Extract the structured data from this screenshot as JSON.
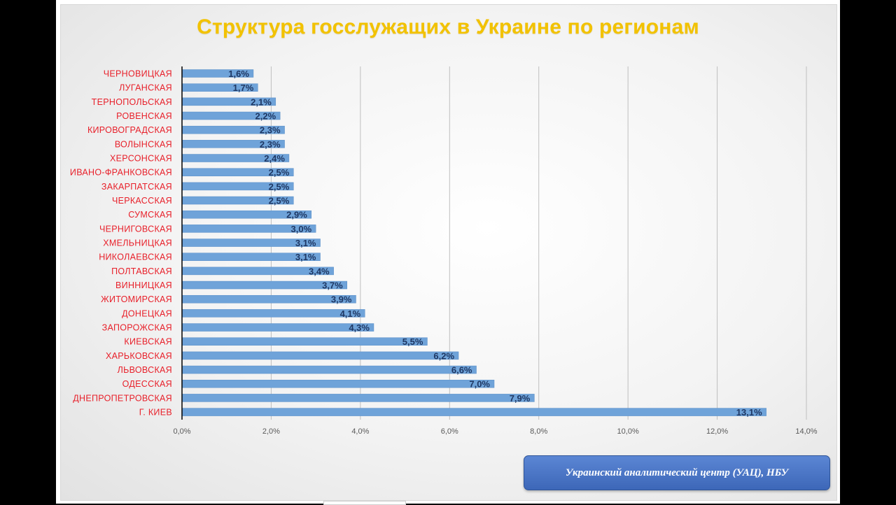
{
  "chart_data": {
    "type": "bar",
    "orientation": "horizontal",
    "title": "Структура госслужащих в Украине по регионам",
    "categories": [
      "ЧЕРНОВИЦКАЯ",
      "ЛУГАНСКАЯ",
      "ТЕРНОПОЛЬСКАЯ",
      "РОВЕНСКАЯ",
      "КИРОВОГРАДСКАЯ",
      "ВОЛЫНСКАЯ",
      "ХЕРСОНСКАЯ",
      "ИВАНО-ФРАНКОВСКАЯ",
      "ЗАКАРПАТСКАЯ",
      "ЧЕРКАССКАЯ",
      "СУМСКАЯ",
      "ЧЕРНИГОВСКАЯ",
      "ХМЕЛЬНИЦКАЯ",
      "НИКОЛАЕВСКАЯ",
      "ПОЛТАВСКАЯ",
      "ВИННИЦКАЯ",
      "ЖИТОМИРСКАЯ",
      "ДОНЕЦКАЯ",
      "ЗАПОРОЖСКАЯ",
      "КИЕВСКАЯ",
      "ХАРЬКОВСКАЯ",
      "ЛЬВОВСКАЯ",
      "ОДЕССКАЯ",
      "ДНЕПРОПЕТРОВСКАЯ",
      "Г. КИЕВ"
    ],
    "values": [
      1.6,
      1.7,
      2.1,
      2.2,
      2.3,
      2.3,
      2.4,
      2.5,
      2.5,
      2.5,
      2.9,
      3.0,
      3.1,
      3.1,
      3.4,
      3.7,
      3.9,
      4.1,
      4.3,
      5.5,
      6.2,
      6.6,
      7.0,
      7.9,
      13.1
    ],
    "data_labels": [
      "1,6%",
      "1,7%",
      "2,1%",
      "2,2%",
      "2,3%",
      "2,3%",
      "2,4%",
      "2,5%",
      "2,5%",
      "2,5%",
      "2,9%",
      "3,0%",
      "3,1%",
      "3,1%",
      "3,4%",
      "3,7%",
      "3,9%",
      "4,1%",
      "4,3%",
      "5,5%",
      "6,2%",
      "6,6%",
      "7,0%",
      "7,9%",
      "13,1%"
    ],
    "xlim": [
      0,
      14
    ],
    "xticks": [
      0,
      2,
      4,
      6,
      8,
      10,
      12,
      14
    ],
    "xtick_labels": [
      "0,0%",
      "2,0%",
      "4,0%",
      "6,0%",
      "8,0%",
      "10,0%",
      "12,0%",
      "14,0%"
    ],
    "xlabel": "",
    "ylabel": "",
    "grid": "vertical",
    "legend": "none"
  },
  "source": "Украинский аналитический центр (УАЦ), НБУ",
  "colors": {
    "bar": "#6fa3d9",
    "bar_edge": "#5a8fc8",
    "category_label": "#e8202a",
    "data_label": "#1f3864",
    "title": "#f2c200",
    "grid": "#bfbfbf",
    "axis": "#000000",
    "tick_label": "#595959"
  }
}
